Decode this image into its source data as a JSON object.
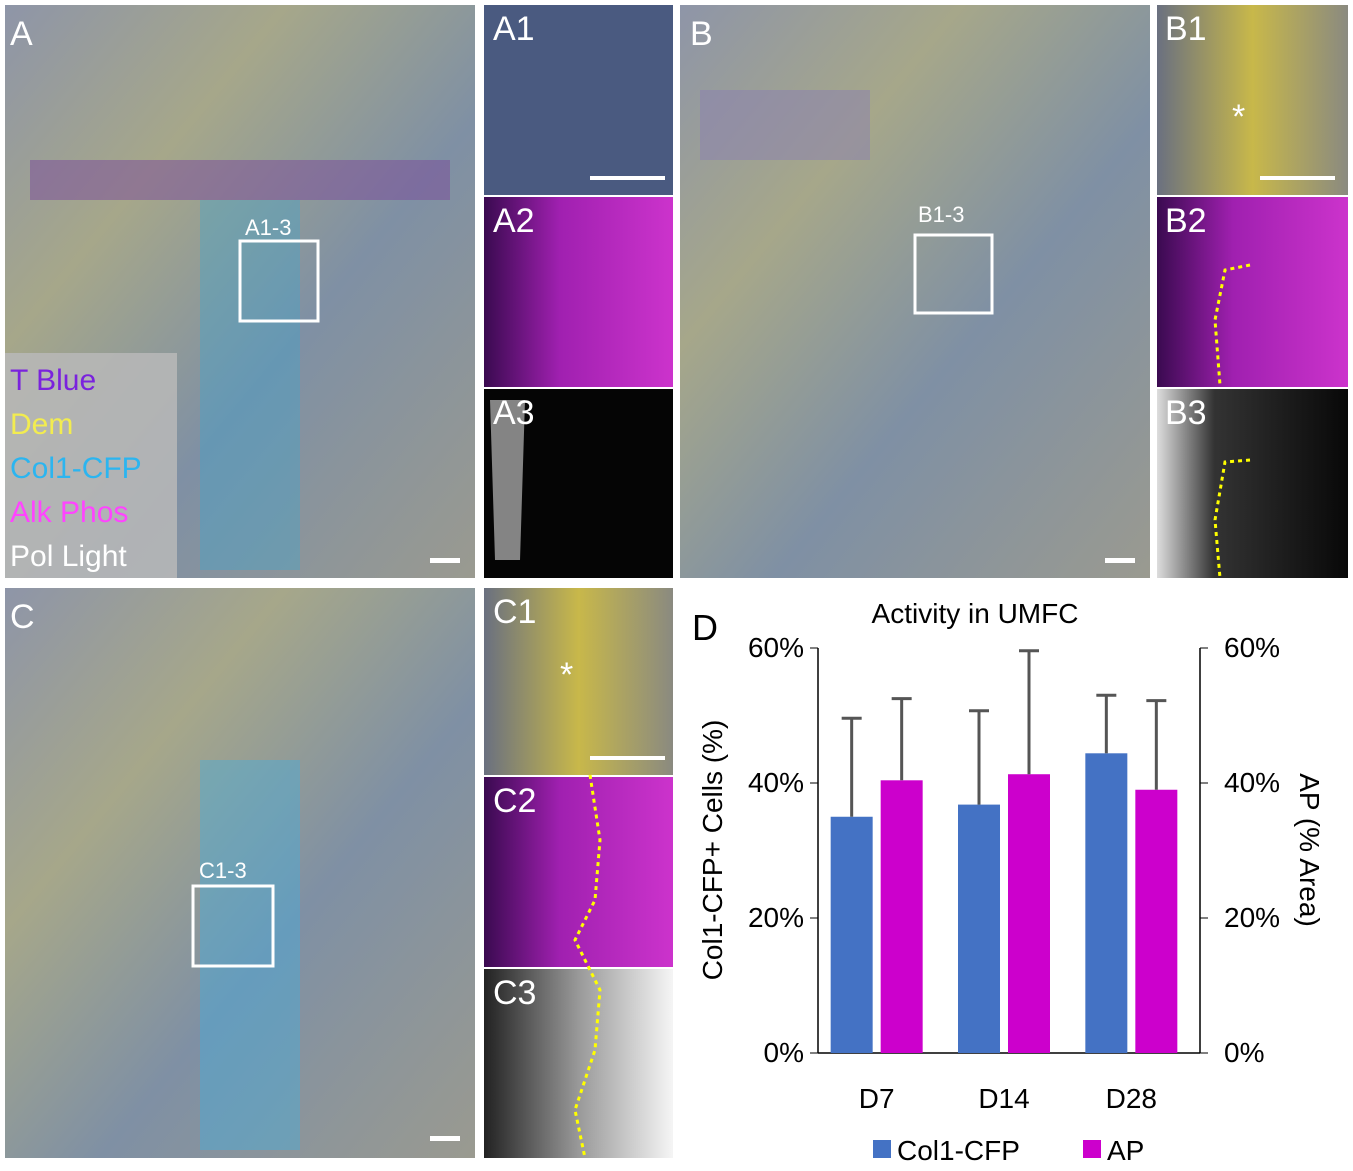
{
  "panels": {
    "A": "A",
    "A1": "A1",
    "A2": "A2",
    "A3": "A3",
    "B": "B",
    "B1": "B1",
    "B2": "B2",
    "B3": "B3",
    "C": "C",
    "C1": "C1",
    "C2": "C2",
    "C3": "C3",
    "D": "D"
  },
  "boxes": {
    "A": "A1-3",
    "B": "B1-3",
    "C": "C1-3"
  },
  "asterisks": {
    "B1": "*",
    "C1": "*"
  },
  "stain_legend": [
    "T Blue",
    "Dem",
    "Col1-CFP",
    "Alk Phos",
    "Pol Light"
  ],
  "chart_data": {
    "type": "bar",
    "title": "Activity in UMFC",
    "y_label": "Col1-CFP+ Cells (%)",
    "y2_label": "AP (% Area)",
    "categories": [
      "D7",
      "D14",
      "D28"
    ],
    "series": [
      {
        "name": "Col1-CFP",
        "color": "#4472c4",
        "values": [
          35,
          36.8,
          44.4
        ],
        "errors": [
          14.6,
          13.9,
          8.6
        ]
      },
      {
        "name": "AP",
        "color": "#cc00cc",
        "axis": "y2",
        "values": [
          40.4,
          41.3,
          39
        ],
        "errors": [
          12.1,
          18.3,
          13.2
        ]
      }
    ],
    "ylim": [
      0,
      60
    ],
    "yticks": [
      {
        "value": 0,
        "label": "0%"
      },
      {
        "value": 20,
        "label": "20%"
      },
      {
        "value": 40,
        "label": "40%"
      },
      {
        "value": 60,
        "label": "60%"
      }
    ],
    "y2lim": [
      0,
      60
    ],
    "y2ticks": [
      {
        "value": 0,
        "label": "0%"
      },
      {
        "value": 20,
        "label": "20%"
      },
      {
        "value": 40,
        "label": "40%"
      },
      {
        "value": 60,
        "label": "60%"
      }
    ],
    "legend": "bottom"
  }
}
